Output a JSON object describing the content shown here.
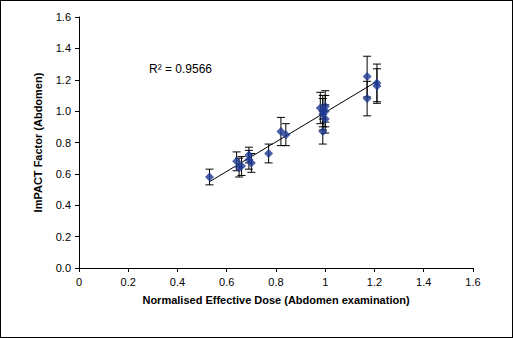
{
  "chart_data": {
    "type": "scatter",
    "xlabel": "Normalised Effective Dose (Abdomen examination)",
    "ylabel": "ImPACT Factor (Abdomen)",
    "annotations": [
      "R² = 0.9566"
    ],
    "x": [
      0.53,
      0.64,
      0.65,
      0.66,
      0.69,
      0.69,
      0.7,
      0.77,
      0.82,
      0.84,
      0.98,
      0.99,
      0.99,
      1.0,
      0.99,
      1.0,
      1.0,
      1.17,
      1.17,
      1.21,
      1.21
    ],
    "values": [
      0.58,
      0.68,
      0.64,
      0.65,
      0.69,
      0.72,
      0.67,
      0.73,
      0.87,
      0.85,
      1.02,
      1.0,
      0.98,
      1.03,
      0.87,
      0.95,
      1.0,
      1.22,
      1.08,
      1.18,
      1.16
    ],
    "yerr": [
      0.05,
      0.06,
      0.06,
      0.06,
      0.06,
      0.05,
      0.06,
      0.06,
      0.09,
      0.07,
      0.1,
      0.1,
      0.1,
      0.1,
      0.08,
      0.09,
      0.1,
      0.13,
      0.11,
      0.12,
      0.11
    ],
    "color": "#1f3a93",
    "marker": "diamond",
    "trendline": {
      "x": [
        0.53,
        1.21
      ],
      "values": [
        0.55,
        1.19
      ],
      "color": "#000000",
      "line_style": "solid"
    },
    "xlim": [
      0,
      1.6
    ],
    "xticks": [
      0,
      0.2,
      0.4,
      0.6,
      0.8,
      1,
      1.2,
      1.4,
      1.6
    ],
    "ylim": [
      0,
      1.6
    ],
    "yticks": [
      {
        "value": 0,
        "label": "0.0"
      },
      0.2,
      0.4,
      0.6,
      0.8,
      {
        "value": 1,
        "label": "1.0"
      },
      1.2,
      1.4,
      1.6
    ],
    "grid": false
  }
}
